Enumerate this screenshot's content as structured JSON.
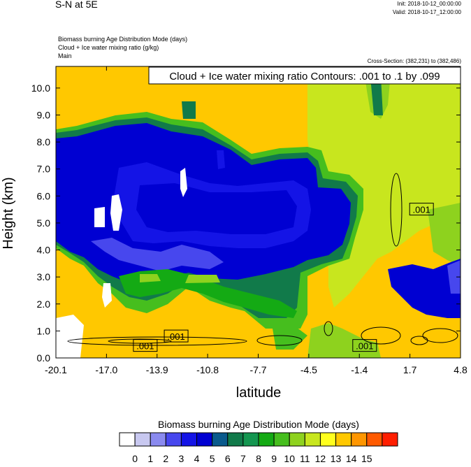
{
  "header": {
    "left_title": "S-N at 5E",
    "init": "Init: 2018-10-12_00:00:00",
    "valid": "Valid: 2018-10-17_12:00:00",
    "field1": "Biomass burning Age Distribution Mode   (days)",
    "field2": "Cloud + Ice water mixing ratio   (g/kg)",
    "field3": "Main",
    "cross_section": "Cross-Section: (382,231) to (382,486)"
  },
  "chart_data": {
    "type": "heatmap",
    "title": "Cloud + Ice water mixing ratio Contours: .001 to .1 by .099",
    "xlabel": "latitude",
    "ylabel": "Height (km)",
    "x_ticks": [
      "-20.1",
      "-17.0",
      "-13.9",
      "-10.8",
      "-7.7",
      "-4.5",
      "-1.4",
      "1.7",
      "4.8"
    ],
    "y_ticks": [
      "0.0",
      "1.0",
      "2.0",
      "3.0",
      "4.0",
      "5.0",
      "6.0",
      "7.0",
      "8.0",
      "9.0",
      "10.0"
    ],
    "xlim": [
      -20.1,
      4.8
    ],
    "ylim": [
      0.0,
      10.8
    ],
    "contour_labels": [
      {
        "text": ".001",
        "x": -14.6,
        "y": 0.45
      },
      {
        "text": ".001",
        "x": -12.7,
        "y": 0.8
      },
      {
        "text": ".001",
        "x": -1.1,
        "y": 0.45
      },
      {
        "text": ".001",
        "x": 2.4,
        "y": 5.5
      }
    ],
    "colorbar": {
      "title": "Biomass burning Age Distribution Mode  (days)",
      "labels": [
        "0",
        "1",
        "2",
        "3",
        "4",
        "5",
        "6",
        "7",
        "8",
        "9",
        "10",
        "11",
        "12",
        "13",
        "14",
        "15"
      ],
      "colors": [
        "#ffffff",
        "#c8c8f0",
        "#8a8aef",
        "#4747ee",
        "#1414e6",
        "#0000d2",
        "#0a5a8c",
        "#117a4a",
        "#149650",
        "#14aa14",
        "#46be1e",
        "#8ed21e",
        "#c8e61e",
        "#ffff1e",
        "#ffc800",
        "#ff9600",
        "#ff5a00",
        "#ff1e00"
      ]
    },
    "regions_days": [
      {
        "name": "background",
        "value": 12.5
      },
      {
        "name": "upper-right-plume",
        "value": 11
      },
      {
        "name": "main-blue-core",
        "value": 4.5
      },
      {
        "name": "outer-blue",
        "value": 3.5
      },
      {
        "name": "green-lower-band",
        "value": 7.5
      },
      {
        "name": "white-patches",
        "value": 0
      }
    ]
  }
}
